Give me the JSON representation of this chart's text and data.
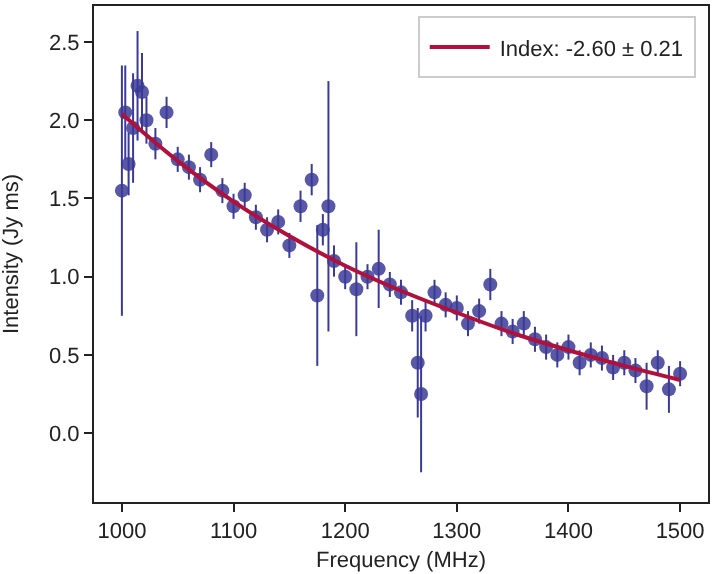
{
  "chart_data": {
    "type": "scatter",
    "xlabel": "Frequency (MHz)",
    "ylabel": "Intensity (Jy ms)",
    "xlim": [
      975,
      1525
    ],
    "ylim": [
      -0.44,
      2.73
    ],
    "xticks": [
      1000,
      1100,
      1200,
      1300,
      1400,
      1500
    ],
    "yticks": [
      {
        "value": 0,
        "label": "0.0"
      },
      {
        "value": 0.5,
        "label": "0.5"
      },
      {
        "value": 1,
        "label": "1.0"
      },
      {
        "value": 1.5,
        "label": "1.5"
      },
      {
        "value": 2,
        "label": "2.0"
      },
      {
        "value": 2.5,
        "label": "2.5"
      }
    ],
    "legend": "top right",
    "marker": "circle",
    "series": [
      {
        "color": "#3b3b96",
        "x": [
          1000,
          1003,
          1006,
          1010,
          1014,
          1018,
          1022,
          1030,
          1040,
          1050,
          1060,
          1070,
          1080,
          1090,
          1100,
          1110,
          1120,
          1130,
          1140,
          1150,
          1160,
          1170,
          1175,
          1180,
          1185,
          1190,
          1200,
          1210,
          1220,
          1230,
          1240,
          1250,
          1260,
          1265,
          1268,
          1272,
          1280,
          1290,
          1300,
          1310,
          1320,
          1330,
          1340,
          1350,
          1360,
          1370,
          1380,
          1390,
          1400,
          1410,
          1420,
          1430,
          1440,
          1450,
          1460,
          1470,
          1480,
          1490,
          1500
        ],
        "values": [
          1.55,
          2.05,
          1.72,
          1.95,
          2.22,
          2.18,
          2.0,
          1.85,
          2.05,
          1.75,
          1.7,
          1.62,
          1.78,
          1.55,
          1.45,
          1.52,
          1.38,
          1.3,
          1.35,
          1.2,
          1.45,
          1.62,
          0.88,
          1.3,
          1.45,
          1.1,
          1.0,
          0.92,
          1.0,
          1.05,
          0.95,
          0.9,
          0.75,
          0.45,
          0.25,
          0.75,
          0.9,
          0.82,
          0.8,
          0.7,
          0.78,
          0.95,
          0.7,
          0.65,
          0.7,
          0.6,
          0.55,
          0.5,
          0.55,
          0.45,
          0.5,
          0.48,
          0.42,
          0.45,
          0.4,
          0.3,
          0.45,
          0.28,
          0.38
        ],
        "errors": [
          0.8,
          0.3,
          0.2,
          0.35,
          0.35,
          0.25,
          0.15,
          0.1,
          0.1,
          0.08,
          0.08,
          0.08,
          0.08,
          0.08,
          0.08,
          0.08,
          0.08,
          0.08,
          0.08,
          0.08,
          0.1,
          0.1,
          0.45,
          0.1,
          0.8,
          0.1,
          0.08,
          0.3,
          0.08,
          0.25,
          0.08,
          0.08,
          0.1,
          0.35,
          0.5,
          0.1,
          0.08,
          0.08,
          0.08,
          0.08,
          0.08,
          0.1,
          0.08,
          0.08,
          0.08,
          0.08,
          0.08,
          0.08,
          0.08,
          0.08,
          0.08,
          0.08,
          0.08,
          0.08,
          0.08,
          0.15,
          0.08,
          0.15,
          0.08
        ]
      },
      {
        "type": "line",
        "name": "Index: -2.60 ± 0.21",
        "color": "#b0103a",
        "line_style": "solid",
        "marker": "none",
        "x": [
          1000,
          1050,
          1100,
          1150,
          1200,
          1250,
          1300,
          1350,
          1400,
          1450,
          1500
        ],
        "values": [
          2.04,
          1.74,
          1.48,
          1.26,
          1.07,
          0.91,
          0.77,
          0.64,
          0.53,
          0.43,
          0.34
        ]
      }
    ]
  }
}
